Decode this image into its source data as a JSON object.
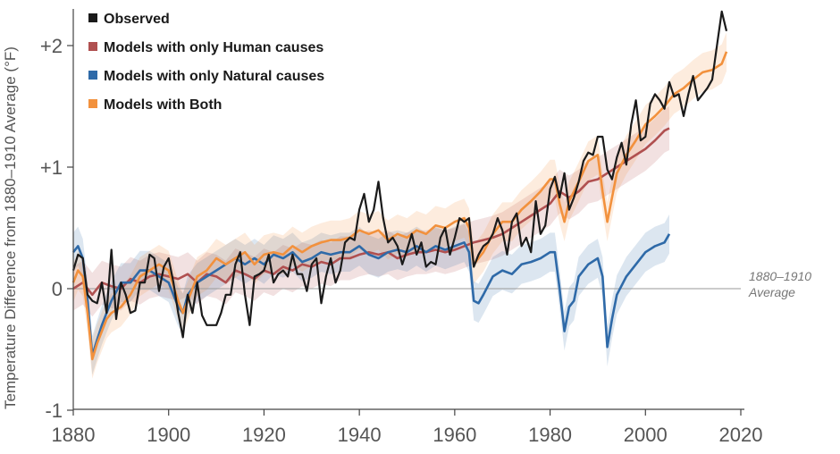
{
  "chart_data": {
    "type": "line",
    "ylabel": "Temperature Difference from 1880–1910 Average (°F)",
    "xlim": [
      1880,
      2020
    ],
    "ylim": [
      -1,
      2.4
    ],
    "x_ticks": [
      1880,
      1900,
      1920,
      1940,
      1960,
      1980,
      2000,
      2020
    ],
    "x_tick_labels": [
      "1880",
      "1900",
      "1920",
      "1940",
      "1960",
      "1980",
      "2000",
      "2020"
    ],
    "y_ticks": [
      -1,
      0,
      1,
      2
    ],
    "y_tick_labels": [
      "-1",
      "0",
      "+1",
      "+2"
    ],
    "annotation": {
      "lines": [
        "1880–1910",
        "Average"
      ],
      "y": 0
    },
    "legend": {
      "position": "top-left"
    },
    "series": [
      {
        "name": "Observed",
        "color": "#1a1a1a",
        "x": [
          1880,
          1881,
          1882,
          1883,
          1884,
          1885,
          1886,
          1887,
          1888,
          1889,
          1890,
          1891,
          1892,
          1893,
          1894,
          1895,
          1896,
          1897,
          1898,
          1899,
          1900,
          1901,
          1902,
          1903,
          1904,
          1905,
          1906,
          1907,
          1908,
          1909,
          1910,
          1911,
          1912,
          1913,
          1914,
          1915,
          1916,
          1917,
          1918,
          1919,
          1920,
          1921,
          1922,
          1923,
          1924,
          1925,
          1926,
          1927,
          1928,
          1929,
          1930,
          1931,
          1932,
          1933,
          1934,
          1935,
          1936,
          1937,
          1938,
          1939,
          1940,
          1941,
          1942,
          1943,
          1944,
          1945,
          1946,
          1947,
          1948,
          1949,
          1950,
          1951,
          1952,
          1953,
          1954,
          1955,
          1956,
          1957,
          1958,
          1959,
          1960,
          1961,
          1962,
          1963,
          1964,
          1965,
          1966,
          1967,
          1968,
          1969,
          1970,
          1971,
          1972,
          1973,
          1974,
          1975,
          1976,
          1977,
          1978,
          1979,
          1980,
          1981,
          1982,
          1983,
          1984,
          1985,
          1986,
          1987,
          1988,
          1989,
          1990,
          1991,
          1992,
          1993,
          1994,
          1995,
          1996,
          1997,
          1998,
          1999,
          2000,
          2001,
          2002,
          2003,
          2004,
          2005,
          2006,
          2007,
          2008,
          2009,
          2010,
          2011,
          2012,
          2013,
          2014,
          2015,
          2016,
          2017
        ],
        "y": [
          0.15,
          0.28,
          0.25,
          -0.05,
          -0.1,
          -0.12,
          0.05,
          -0.2,
          0.32,
          -0.25,
          0.05,
          -0.05,
          -0.2,
          -0.18,
          0.05,
          0.05,
          0.28,
          0.25,
          -0.02,
          0.18,
          0.25,
          0.05,
          -0.2,
          -0.4,
          -0.05,
          -0.2,
          0.05,
          -0.22,
          -0.3,
          -0.3,
          -0.3,
          -0.2,
          -0.05,
          -0.05,
          0.2,
          0.3,
          -0.05,
          -0.3,
          0.1,
          0.12,
          0.15,
          0.28,
          0.05,
          0.12,
          0.15,
          0.1,
          0.28,
          0.12,
          0.12,
          -0.02,
          0.2,
          0.25,
          -0.12,
          0.1,
          0.25,
          0.05,
          0.15,
          0.38,
          0.42,
          0.4,
          0.65,
          0.78,
          0.55,
          0.65,
          0.88,
          0.58,
          0.38,
          0.42,
          0.35,
          0.2,
          0.32,
          0.45,
          0.28,
          0.38,
          0.18,
          0.22,
          0.2,
          0.42,
          0.5,
          0.28,
          0.42,
          0.58,
          0.55,
          0.58,
          0.18,
          0.28,
          0.35,
          0.38,
          0.45,
          0.58,
          0.48,
          0.28,
          0.55,
          0.62,
          0.35,
          0.42,
          0.3,
          0.72,
          0.45,
          0.52,
          0.82,
          0.92,
          0.75,
          0.95,
          0.65,
          0.75,
          0.88,
          1.05,
          1.12,
          1.1,
          1.25,
          1.25,
          0.98,
          0.9,
          1.08,
          1.2,
          1.02,
          1.35,
          1.55,
          1.22,
          1.25,
          1.52,
          1.6,
          1.55,
          1.48,
          1.7,
          1.58,
          1.6,
          1.42,
          1.6,
          1.75,
          1.55,
          1.6,
          1.65,
          1.72,
          2.0,
          2.28,
          2.12
        ]
      },
      {
        "name": "Models with only Human causes",
        "color": "#b05050",
        "x": [
          1880,
          1882,
          1884,
          1886,
          1888,
          1890,
          1892,
          1894,
          1896,
          1898,
          1900,
          1902,
          1904,
          1906,
          1908,
          1910,
          1912,
          1914,
          1916,
          1918,
          1920,
          1922,
          1924,
          1926,
          1928,
          1930,
          1932,
          1934,
          1936,
          1938,
          1940,
          1942,
          1944,
          1946,
          1948,
          1950,
          1952,
          1954,
          1956,
          1958,
          1960,
          1962,
          1964,
          1966,
          1968,
          1970,
          1972,
          1974,
          1976,
          1978,
          1980,
          1982,
          1984,
          1986,
          1988,
          1990,
          1992,
          1994,
          1996,
          1998,
          2000,
          2002,
          2004,
          2005
        ],
        "y": [
          0.0,
          0.05,
          -0.05,
          0.05,
          0.02,
          0.0,
          0.08,
          0.05,
          0.1,
          0.12,
          0.1,
          0.08,
          0.12,
          0.05,
          0.12,
          0.1,
          0.05,
          0.15,
          0.12,
          0.08,
          0.15,
          0.12,
          0.18,
          0.15,
          0.2,
          0.18,
          0.22,
          0.2,
          0.25,
          0.25,
          0.28,
          0.3,
          0.28,
          0.3,
          0.25,
          0.28,
          0.3,
          0.3,
          0.32,
          0.3,
          0.32,
          0.35,
          0.38,
          0.4,
          0.42,
          0.45,
          0.5,
          0.55,
          0.6,
          0.65,
          0.7,
          0.8,
          0.75,
          0.8,
          0.88,
          0.9,
          0.95,
          1.0,
          1.05,
          1.1,
          1.15,
          1.22,
          1.3,
          1.32
        ]
      },
      {
        "name": "Models with only Natural causes",
        "color": "#2f6aa8",
        "x": [
          1880,
          1881,
          1882,
          1883,
          1884,
          1885,
          1886,
          1887,
          1888,
          1890,
          1892,
          1894,
          1896,
          1898,
          1900,
          1902,
          1903,
          1904,
          1906,
          1908,
          1910,
          1912,
          1914,
          1916,
          1918,
          1920,
          1922,
          1924,
          1926,
          1928,
          1930,
          1932,
          1934,
          1936,
          1938,
          1940,
          1942,
          1944,
          1946,
          1948,
          1950,
          1952,
          1954,
          1956,
          1958,
          1960,
          1962,
          1963,
          1964,
          1965,
          1966,
          1968,
          1970,
          1972,
          1974,
          1976,
          1978,
          1980,
          1981,
          1982,
          1983,
          1984,
          1985,
          1986,
          1988,
          1990,
          1991,
          1992,
          1993,
          1994,
          1996,
          1998,
          2000,
          2002,
          2004,
          2005
        ],
        "y": [
          0.3,
          0.35,
          0.25,
          -0.1,
          -0.55,
          -0.42,
          -0.3,
          -0.2,
          -0.1,
          0.05,
          0.05,
          0.15,
          0.15,
          0.1,
          0.05,
          -0.15,
          -0.2,
          -0.05,
          0.05,
          0.1,
          0.15,
          0.2,
          0.25,
          0.2,
          0.25,
          0.2,
          0.28,
          0.25,
          0.3,
          0.22,
          0.25,
          0.3,
          0.28,
          0.3,
          0.3,
          0.35,
          0.28,
          0.25,
          0.3,
          0.32,
          0.3,
          0.35,
          0.3,
          0.35,
          0.32,
          0.35,
          0.38,
          0.3,
          -0.1,
          -0.12,
          -0.05,
          0.1,
          0.15,
          0.12,
          0.2,
          0.22,
          0.25,
          0.3,
          0.3,
          0.0,
          -0.35,
          -0.15,
          -0.1,
          0.1,
          0.2,
          0.25,
          0.1,
          -0.48,
          -0.25,
          -0.05,
          0.1,
          0.2,
          0.3,
          0.35,
          0.38,
          0.45
        ]
      },
      {
        "name": "Models with Both",
        "color": "#f2913d",
        "x": [
          1880,
          1881,
          1882,
          1883,
          1884,
          1885,
          1886,
          1887,
          1888,
          1890,
          1892,
          1894,
          1896,
          1898,
          1900,
          1902,
          1903,
          1904,
          1906,
          1908,
          1910,
          1912,
          1914,
          1916,
          1918,
          1920,
          1922,
          1924,
          1926,
          1928,
          1930,
          1932,
          1934,
          1936,
          1938,
          1940,
          1942,
          1944,
          1946,
          1948,
          1950,
          1952,
          1954,
          1956,
          1958,
          1960,
          1962,
          1963,
          1964,
          1965,
          1966,
          1968,
          1970,
          1972,
          1974,
          1976,
          1978,
          1980,
          1981,
          1982,
          1983,
          1984,
          1985,
          1986,
          1988,
          1990,
          1991,
          1992,
          1993,
          1994,
          1996,
          1998,
          2000,
          2002,
          2004,
          2006,
          2008,
          2010,
          2012,
          2014,
          2016,
          2017
        ],
        "y": [
          0.05,
          0.15,
          0.1,
          -0.2,
          -0.58,
          -0.45,
          -0.35,
          -0.25,
          -0.2,
          -0.15,
          -0.05,
          0.1,
          0.15,
          0.2,
          0.15,
          -0.1,
          -0.2,
          -0.1,
          0.1,
          0.15,
          0.25,
          0.2,
          0.25,
          0.3,
          0.2,
          0.28,
          0.3,
          0.28,
          0.35,
          0.3,
          0.35,
          0.38,
          0.4,
          0.4,
          0.42,
          0.48,
          0.45,
          0.48,
          0.4,
          0.45,
          0.42,
          0.48,
          0.45,
          0.52,
          0.5,
          0.55,
          0.58,
          0.5,
          0.2,
          0.25,
          0.3,
          0.45,
          0.55,
          0.55,
          0.65,
          0.72,
          0.8,
          0.9,
          0.9,
          0.7,
          0.55,
          0.72,
          0.8,
          0.88,
          1.05,
          1.1,
          0.8,
          0.55,
          0.75,
          0.95,
          1.1,
          1.22,
          1.35,
          1.42,
          1.5,
          1.6,
          1.65,
          1.72,
          1.78,
          1.8,
          1.85,
          1.95
        ]
      }
    ]
  }
}
